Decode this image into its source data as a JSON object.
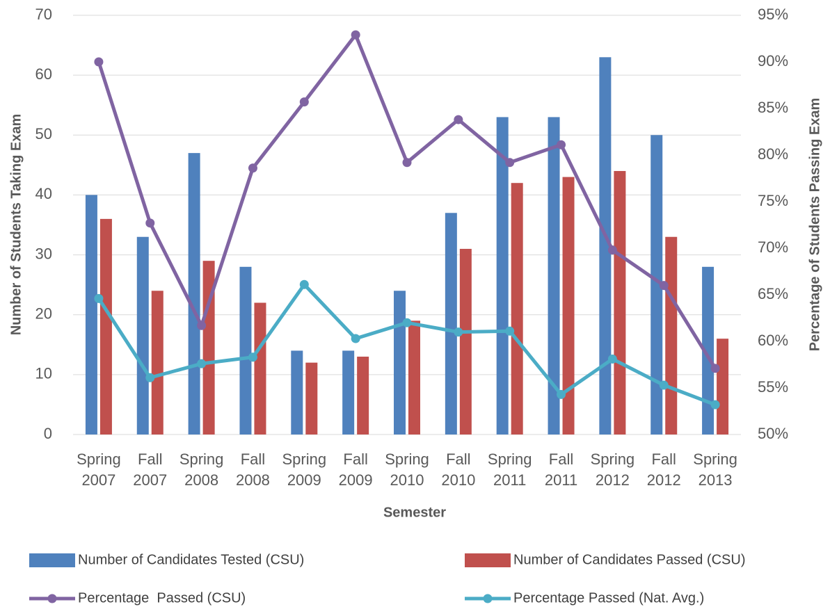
{
  "chart_data": {
    "type": "combo",
    "x_label": "Semester",
    "y_label": "Number of Students Taking Exam",
    "y2_label": "Percentage of Students Passing Exam",
    "categories": [
      "Spring 2007",
      "Fall 2007",
      "Spring 2008",
      "Fall 2008",
      "Spring 2009",
      "Fall 2009",
      "Spring 2010",
      "Fall 2010",
      "Spring 2011",
      "Fall 2011",
      "Spring 2012",
      "Fall 2012",
      "Spring 2013"
    ],
    "series": [
      {
        "name": "Number of Candidates Tested (CSU)",
        "type": "bar",
        "color": "#4f81bd",
        "values": [
          40,
          33,
          47,
          28,
          14,
          14,
          24,
          37,
          53,
          53,
          63,
          50,
          28
        ]
      },
      {
        "name": "Number of Candidates Passed (CSU)",
        "type": "bar",
        "color": "#c0504d",
        "values": [
          36,
          24,
          29,
          22,
          12,
          13,
          19,
          31,
          42,
          43,
          44,
          33,
          16
        ]
      },
      {
        "name": "Percentage  Passed (CSU)",
        "type": "line",
        "axis": "y2",
        "color": "#8064a2",
        "values": [
          90,
          72.7,
          61.7,
          78.6,
          85.7,
          92.9,
          79.2,
          83.8,
          79.2,
          81.1,
          69.8,
          66,
          57.1
        ]
      },
      {
        "name": "Percentage Passed (Nat. Avg.)",
        "type": "line",
        "axis": "y2",
        "color": "#4bacc6",
        "values": [
          64.6,
          56.1,
          57.6,
          58.3,
          66.1,
          60.3,
          62,
          61,
          61.1,
          54.3,
          58.1,
          55.3,
          53.2
        ]
      }
    ],
    "ylim": [
      0,
      70
    ],
    "yticks": [
      0,
      10,
      20,
      30,
      40,
      50,
      60,
      70
    ],
    "y2lim": [
      50,
      95
    ],
    "y2ticks": [
      {
        "value": 50,
        "label": "50%"
      },
      {
        "value": 55,
        "label": "55%"
      },
      {
        "value": 60,
        "label": "60%"
      },
      {
        "value": 65,
        "label": "65%"
      },
      {
        "value": 70,
        "label": "70%"
      },
      {
        "value": 75,
        "label": "75%"
      },
      {
        "value": 80,
        "label": "80%"
      },
      {
        "value": 85,
        "label": "85%"
      },
      {
        "value": 90,
        "label": "90%"
      },
      {
        "value": 95,
        "label": "95%"
      }
    ],
    "grid": true,
    "legend": "bottom"
  }
}
